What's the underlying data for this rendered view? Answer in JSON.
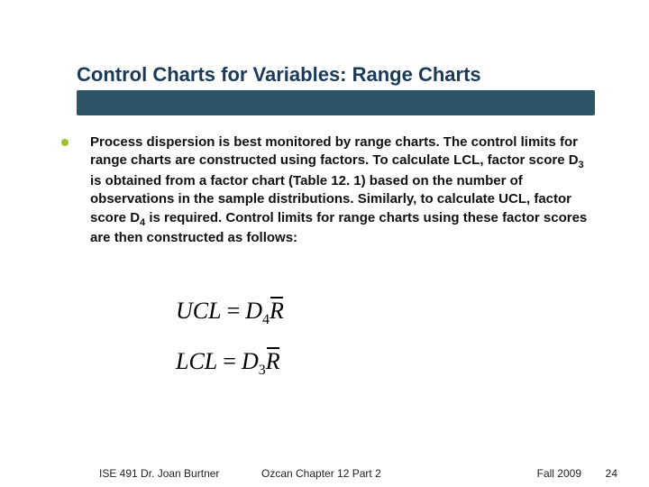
{
  "title": "Control Charts for Variables:  Range Charts",
  "title_color": "#1a3a5a",
  "title_bar_color": "#2d5568",
  "bullet_color": "#a0c030",
  "body": {
    "pre1": "Process dispersion is best monitored by range charts.  The control limits for range charts are constructed using factors.  To calculate LCL, factor score D",
    "sub1": "3",
    "mid1": " is obtained from a factor chart (Table 12. 1) based on the number of observations in the sample distributions. Similarly, to calculate UCL, factor score D",
    "sub2": "4",
    "post1": " is required.  Control limits for range charts using these factor scores are then constructed as follows:"
  },
  "formulas": {
    "ucl_lhs": "UCL",
    "ucl_d": "D",
    "ucl_sub": "4",
    "lcl_lhs": "LCL",
    "lcl_d": "D",
    "lcl_sub": "3",
    "rbar": "R"
  },
  "footer": {
    "left": "ISE 491  Dr. Joan Burtner",
    "center": "Ozcan Chapter 12 Part 2",
    "right": "Fall 2009",
    "page": "24"
  }
}
